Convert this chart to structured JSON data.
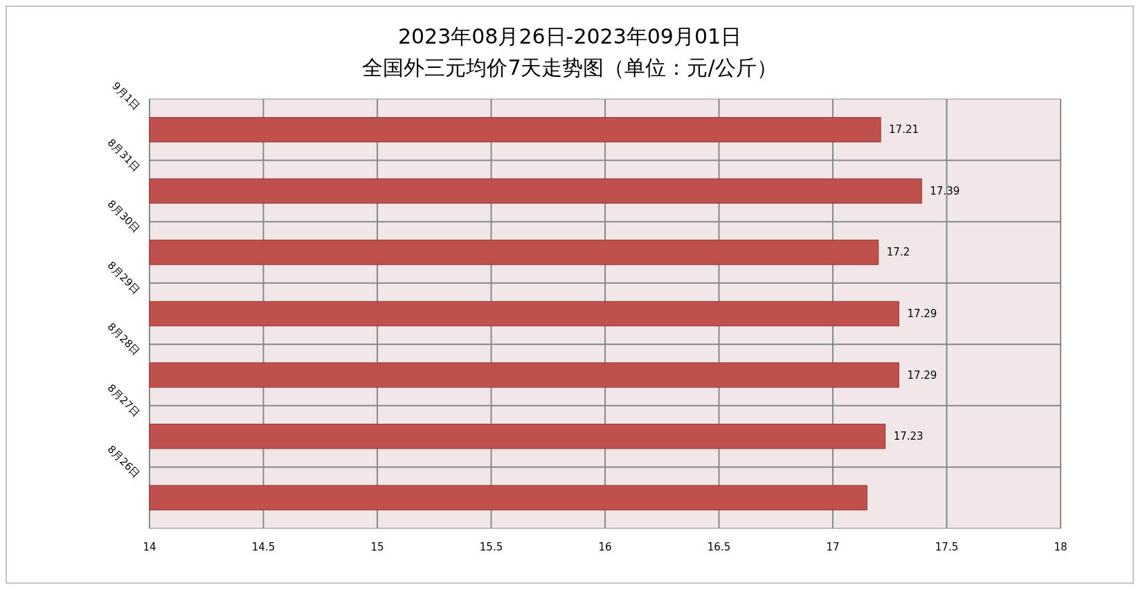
{
  "chart_data": {
    "type": "bar",
    "orientation": "horizontal",
    "title": "2023年08月26日-2023年09月01日",
    "subtitle": "全国外三元均价7天走势图（单位：元/公斤）",
    "categories": [
      "9月1日",
      "8月31日",
      "8月30日",
      "8月29日",
      "8月28日",
      "8月27日",
      "8月26日"
    ],
    "values": [
      17.21,
      17.39,
      17.2,
      17.29,
      17.29,
      17.23,
      17.15
    ],
    "value_labels": [
      "17.21",
      "17.39",
      "17.2",
      "17.29",
      "17.29",
      "17.23",
      null
    ],
    "color": "#c0504d",
    "xlim": [
      14,
      18
    ],
    "xticks": [
      14,
      14.5,
      15,
      15.5,
      16,
      16.5,
      17,
      17.5,
      18
    ],
    "grid": true
  }
}
